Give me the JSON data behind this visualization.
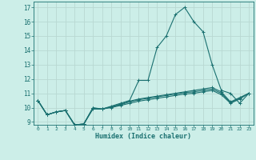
{
  "title": "",
  "xlabel": "Humidex (Indice chaleur)",
  "ylabel": "",
  "xlim": [
    -0.5,
    23.5
  ],
  "ylim": [
    8.8,
    17.4
  ],
  "xticks": [
    0,
    1,
    2,
    3,
    4,
    5,
    6,
    7,
    8,
    9,
    10,
    11,
    12,
    13,
    14,
    15,
    16,
    17,
    18,
    19,
    20,
    21,
    22,
    23
  ],
  "yticks": [
    9,
    10,
    11,
    12,
    13,
    14,
    15,
    16,
    17
  ],
  "bg_color": "#cceee8",
  "grid_color": "#b8d8d2",
  "line_color": "#1a7070",
  "lines": [
    [
      10.5,
      9.5,
      9.7,
      9.8,
      8.8,
      8.85,
      10.0,
      9.9,
      10.1,
      10.3,
      10.5,
      11.9,
      11.9,
      14.2,
      15.0,
      16.5,
      17.0,
      16.0,
      15.3,
      13.0,
      11.2,
      11.0,
      10.3,
      11.0
    ],
    [
      10.5,
      9.5,
      9.7,
      9.8,
      8.8,
      8.85,
      9.9,
      9.9,
      10.0,
      10.15,
      10.3,
      10.45,
      10.55,
      10.65,
      10.75,
      10.85,
      10.95,
      11.0,
      11.1,
      11.2,
      10.9,
      10.3,
      10.6,
      11.0
    ],
    [
      10.5,
      9.5,
      9.7,
      9.8,
      8.8,
      8.85,
      9.95,
      9.9,
      10.05,
      10.2,
      10.4,
      10.55,
      10.65,
      10.75,
      10.85,
      10.95,
      11.05,
      11.1,
      11.2,
      11.3,
      11.0,
      10.35,
      10.65,
      11.0
    ],
    [
      10.5,
      9.5,
      9.7,
      9.8,
      8.8,
      8.85,
      9.95,
      9.9,
      10.05,
      10.25,
      10.45,
      10.6,
      10.7,
      10.8,
      10.9,
      11.0,
      11.1,
      11.2,
      11.3,
      11.4,
      11.1,
      10.4,
      10.7,
      11.0
    ]
  ]
}
